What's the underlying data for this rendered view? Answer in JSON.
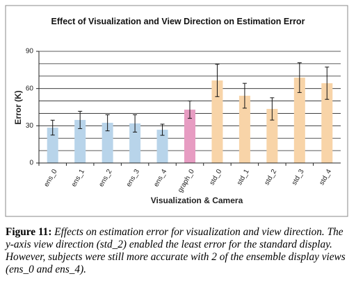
{
  "chart_data": {
    "type": "bar",
    "title": "Effect of Visualization and View Direction on Estimation Error",
    "xlabel": "Visualization & Camera",
    "ylabel": "Error (K)",
    "categories": [
      "ens_0",
      "ens_1",
      "ens_2",
      "ens_3",
      "ens_4",
      "graph_0",
      "std_0",
      "std_1",
      "std_2",
      "std_3",
      "std_4"
    ],
    "values": [
      28.5,
      34.7,
      32.4,
      31.9,
      26.8,
      43,
      66.5,
      54.2,
      43.6,
      68.8,
      64.3
    ],
    "errors": [
      6,
      7,
      6.5,
      7,
      4.5,
      7,
      13,
      10,
      9,
      12,
      13
    ],
    "colors": [
      "#b8d4ea",
      "#b8d4ea",
      "#b8d4ea",
      "#b8d4ea",
      "#b8d4ea",
      "#e79cc2",
      "#f8d4a8",
      "#f8d4a8",
      "#f8d4a8",
      "#f8d4a8",
      "#f8d4a8"
    ],
    "ylim": [
      0,
      90
    ],
    "yticks": [
      0,
      30,
      60,
      90
    ],
    "minor_yticks": [
      10,
      20,
      40,
      50,
      70,
      80
    ],
    "grid": true
  },
  "caption": {
    "label": "Figure 11:",
    "text": "Effects on estimation error for visualization and view direction. The y-axis view direction (std_2) enabled the least error for the standard display. However, subjects were still more accurate with 2 of the ensemble display views (ens_0 and ens_4)."
  }
}
